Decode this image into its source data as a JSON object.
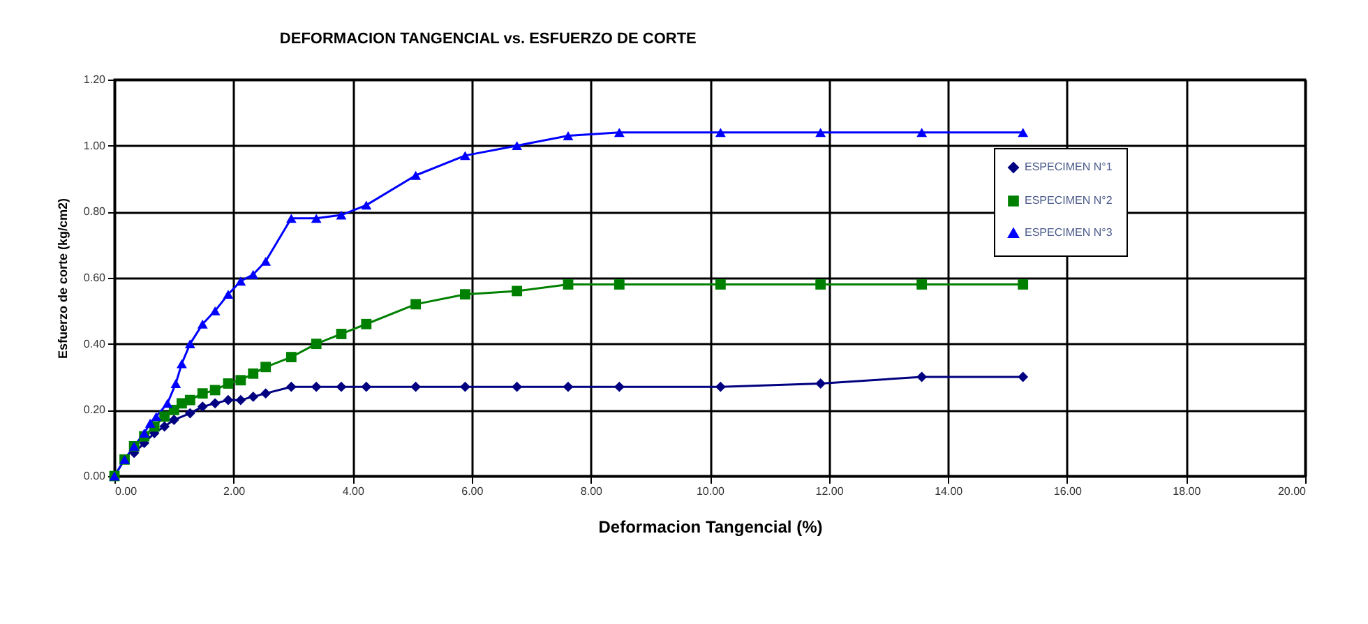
{
  "chart_data": {
    "type": "line",
    "title": "DEFORMACION TANGENCIAL vs. ESFUERZO DE CORTE",
    "xlabel": "Deformacion Tangencial (%)",
    "ylabel": "Esfuerzo de corte (kg/cm2)",
    "xlim": [
      0,
      20
    ],
    "ylim": [
      0,
      1.2
    ],
    "xticks": [
      {
        "value": 0,
        "label": "0.00"
      },
      {
        "value": 2,
        "label": "2.00"
      },
      {
        "value": 4,
        "label": "4.00"
      },
      {
        "value": 6,
        "label": "6.00"
      },
      {
        "value": 8,
        "label": "8.00"
      },
      {
        "value": 10,
        "label": "10.00"
      },
      {
        "value": 12,
        "label": "12.00"
      },
      {
        "value": 14,
        "label": "14.00"
      },
      {
        "value": 16,
        "label": "16.00"
      },
      {
        "value": 18,
        "label": "18.00"
      },
      {
        "value": 20,
        "label": "20.00"
      }
    ],
    "yticks": [
      {
        "value": 0,
        "label": "0.00"
      },
      {
        "value": 0.2,
        "label": "0.20"
      },
      {
        "value": 0.4,
        "label": "0.40"
      },
      {
        "value": 0.6,
        "label": "0.60"
      },
      {
        "value": 0.8,
        "label": "0.80"
      },
      {
        "value": 1.0,
        "label": "1.00"
      },
      {
        "value": 1.2,
        "label": "1.20"
      }
    ],
    "grid": true,
    "legend": "top right",
    "line_style": "solid",
    "series": [
      {
        "name": "ESPECIMEN N°1",
        "color": "#000080",
        "marker": "diamond",
        "x": [
          0.33,
          0.5,
          0.67,
          0.84,
          1.0,
          1.27,
          1.48,
          1.69,
          1.91,
          2.12,
          2.33,
          2.54,
          2.97,
          3.39,
          3.81,
          4.23,
          5.06,
          5.89,
          6.76,
          7.62,
          8.48,
          10.18,
          11.86,
          13.56,
          15.26
        ],
        "values": [
          0.07,
          0.1,
          0.13,
          0.15,
          0.17,
          0.19,
          0.21,
          0.22,
          0.23,
          0.23,
          0.24,
          0.25,
          0.27,
          0.27,
          0.27,
          0.27,
          0.27,
          0.27,
          0.27,
          0.27,
          0.27,
          0.27,
          0.28,
          0.3,
          0.3
        ]
      },
      {
        "name": "ESPECIMEN N°2",
        "color": "#008000",
        "marker": "square",
        "x": [
          0,
          0.17,
          0.33,
          0.5,
          0.67,
          0.84,
          1.0,
          1.13,
          1.27,
          1.48,
          1.69,
          1.91,
          2.12,
          2.33,
          2.54,
          2.97,
          3.39,
          3.81,
          4.23,
          5.06,
          5.89,
          6.76,
          7.62,
          8.48,
          10.18,
          11.86,
          13.56,
          15.26
        ],
        "values": [
          0,
          0.05,
          0.09,
          0.12,
          0.15,
          0.18,
          0.2,
          0.22,
          0.23,
          0.25,
          0.26,
          0.28,
          0.29,
          0.31,
          0.33,
          0.36,
          0.4,
          0.43,
          0.46,
          0.52,
          0.55,
          0.56,
          0.58,
          0.58,
          0.58,
          0.58,
          0.58,
          0.58
        ]
      },
      {
        "name": "ESPECIMEN N°3",
        "color": "#0000ff",
        "marker": "triangle",
        "x": [
          0,
          0.17,
          0.33,
          0.5,
          0.6,
          0.7,
          0.89,
          1.03,
          1.13,
          1.27,
          1.48,
          1.69,
          1.91,
          2.12,
          2.33,
          2.54,
          2.97,
          3.39,
          3.81,
          4.23,
          5.06,
          5.89,
          6.76,
          7.62,
          8.48,
          10.18,
          11.86,
          13.56,
          15.26
        ],
        "values": [
          0,
          0.05,
          0.09,
          0.13,
          0.16,
          0.18,
          0.22,
          0.28,
          0.34,
          0.4,
          0.46,
          0.5,
          0.55,
          0.59,
          0.61,
          0.65,
          0.78,
          0.78,
          0.79,
          0.82,
          0.91,
          0.97,
          1.0,
          1.03,
          1.04,
          1.04,
          1.04,
          1.04,
          1.04
        ]
      }
    ]
  }
}
